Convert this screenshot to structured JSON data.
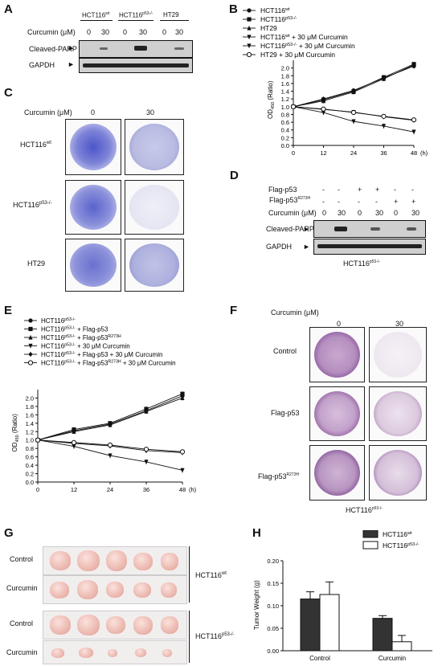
{
  "panels": {
    "A": "A",
    "B": "B",
    "C": "C",
    "D": "D",
    "E": "E",
    "F": "F",
    "G": "G",
    "H": "H"
  },
  "panelA": {
    "groups": [
      {
        "main": "HCT116",
        "sup": "wt"
      },
      {
        "main": "HCT116",
        "sup": "p53-/-"
      },
      {
        "main": "HT29",
        "sup": ""
      }
    ],
    "curcumin_label": "Curcumin (μM)",
    "doses": [
      "0",
      "30",
      "0",
      "30",
      "0",
      "30"
    ],
    "rows": [
      "Cleaved-PARP",
      "GAPDH"
    ]
  },
  "panelB": {
    "legend": [
      {
        "main": "HCT116",
        "sup": "wt",
        "rest": ""
      },
      {
        "main": "HCT116",
        "sup": "p53-/-",
        "rest": ""
      },
      {
        "main": "HT29",
        "sup": "",
        "rest": ""
      },
      {
        "main": "HCT116",
        "sup": "wt",
        "rest": " + 30 μM Curcumin"
      },
      {
        "main": "HCT116",
        "sup": "p53-/-",
        "rest": " + 30 μM Curcumin"
      },
      {
        "main": "HT29",
        "sup": "",
        "rest": " + 30 μM Curcumin"
      }
    ],
    "ylabel": "OD",
    "ylabel_sub": "450",
    "ylabel_rest": " (Ratio)",
    "xunit": "(h)"
  },
  "chart_data": [
    {
      "type": "line",
      "x": [
        0,
        12,
        24,
        36,
        48
      ],
      "xticks": [
        "0",
        "12",
        "24",
        "36",
        "48"
      ],
      "ylim": [
        0,
        2.2
      ],
      "yticks": [
        "0.0",
        "0.2",
        "0.4",
        "0.6",
        "0.8",
        "1.0",
        "1.2",
        "1.4",
        "1.6",
        "1.8",
        "2.0"
      ],
      "series": [
        {
          "name": "HCT116wt",
          "marker": "circle",
          "values": [
            1.0,
            1.2,
            1.42,
            1.74,
            2.05
          ]
        },
        {
          "name": "HCT116p53-/-",
          "marker": "square",
          "values": [
            1.0,
            1.18,
            1.4,
            1.76,
            2.1
          ]
        },
        {
          "name": "HT29",
          "marker": "triangle",
          "values": [
            1.0,
            1.15,
            1.38,
            1.72,
            2.08
          ]
        },
        {
          "name": "HCT116wt + 30 μM Curcumin",
          "marker": "triangle-down",
          "values": [
            1.0,
            0.93,
            0.86,
            0.74,
            0.65
          ]
        },
        {
          "name": "HCT116p53-/- + 30 μM Curcumin",
          "marker": "triangle-down",
          "values": [
            1.0,
            0.85,
            0.62,
            0.5,
            0.35
          ]
        },
        {
          "name": "HT29 + 30 μM Curcumin",
          "marker": "open-circle",
          "values": [
            1.0,
            0.94,
            0.85,
            0.75,
            0.66
          ]
        }
      ]
    },
    {
      "type": "line",
      "x": [
        0,
        12,
        24,
        36,
        48
      ],
      "xticks": [
        "0",
        "12",
        "24",
        "36",
        "48"
      ],
      "ylim": [
        0,
        2.2
      ],
      "yticks": [
        "0.0",
        "0.2",
        "0.4",
        "0.6",
        "0.8",
        "1.0",
        "1.2",
        "1.4",
        "1.6",
        "1.8",
        "2.0"
      ],
      "series": [
        {
          "name": "HCT116p53-/-",
          "marker": "circle",
          "values": [
            1.0,
            1.22,
            1.38,
            1.7,
            2.05
          ]
        },
        {
          "name": "HCT116p53-/- + Flag-p53",
          "marker": "square",
          "values": [
            1.0,
            1.25,
            1.4,
            1.74,
            2.1
          ]
        },
        {
          "name": "HCT116p53-/- + Flag-p53R273H",
          "marker": "triangle",
          "values": [
            1.0,
            1.2,
            1.36,
            1.68,
            2.0
          ]
        },
        {
          "name": "HCT116p53-/- + 30 μM Curcumin",
          "marker": "triangle-down",
          "values": [
            1.0,
            0.85,
            0.63,
            0.48,
            0.28
          ]
        },
        {
          "name": "HCT116p53-/- + Flag-p53 + 30 μM Curcumin",
          "marker": "diamond",
          "values": [
            1.0,
            0.92,
            0.86,
            0.75,
            0.7
          ]
        },
        {
          "name": "HCT116p53-/- + Flag-p53R273H + 30 μM Curcumin",
          "marker": "open-circle",
          "values": [
            1.0,
            0.94,
            0.88,
            0.78,
            0.72
          ]
        }
      ]
    },
    {
      "type": "bar",
      "categories": [
        "Control",
        "Curcumin"
      ],
      "ylim": [
        0,
        0.2
      ],
      "yticks": [
        "0.00",
        "0.05",
        "0.10",
        "0.15",
        "0.20"
      ],
      "series": [
        {
          "name": "HCT116wt",
          "color": "#333333",
          "values": [
            0.115,
            0.072
          ],
          "err": [
            0.016,
            0.006
          ]
        },
        {
          "name": "HCT116p53-/-",
          "color": "#ffffff",
          "values": [
            0.125,
            0.02
          ],
          "err": [
            0.028,
            0.014
          ]
        }
      ]
    }
  ],
  "panelC": {
    "curcumin_label": "Curcumin  (μM)",
    "cols": [
      "0",
      "30"
    ],
    "rows": [
      {
        "main": "HCT116",
        "sup": "wt"
      },
      {
        "main": "HCT116",
        "sup": "p53-/-"
      },
      {
        "main": "HT29",
        "sup": ""
      }
    ]
  },
  "panelD": {
    "rows": [
      {
        "main": "Flag-p53",
        "sup": "",
        "marks": [
          "-",
          "-",
          "+",
          "+",
          "-",
          "-"
        ]
      },
      {
        "main": "Flag-p53",
        "sup": "R273H",
        "marks": [
          "-",
          "-",
          "-",
          "-",
          "+",
          "+"
        ]
      },
      {
        "main": "Curcumin (μM)",
        "sup": "",
        "marks": [
          "0",
          "30",
          "0",
          "30",
          "0",
          "30"
        ]
      }
    ],
    "blots": [
      "Cleaved-PARP",
      "GAPDH"
    ],
    "cell": {
      "main": "HCT116",
      "sup": "p53-/-"
    }
  },
  "panelE": {
    "legend": [
      {
        "a": "HCT116",
        "s": "p53-/-",
        "b": "",
        "s2": "",
        "c": ""
      },
      {
        "a": "HCT116",
        "s": "p53-/-",
        "b": " + Flag-p53",
        "s2": "",
        "c": ""
      },
      {
        "a": "HCT116",
        "s": "p53-/-",
        "b": " + Flag-p53",
        "s2": "R273H",
        "c": ""
      },
      {
        "a": "HCT116",
        "s": "p53-/-",
        "b": " + 30 μM Curcumin",
        "s2": "",
        "c": ""
      },
      {
        "a": "HCT116",
        "s": "p53-/-",
        "b": " + Flag-p53 + 30 μM Curcumin",
        "s2": "",
        "c": ""
      },
      {
        "a": "HCT116",
        "s": "p53-/-",
        "b": " + Flag-p53",
        "s2": "R273H",
        "c": " + 30 μM Curcumin"
      }
    ],
    "ylabel": "OD",
    "ylabel_sub": "450",
    "ylabel_rest": " (Ratio)",
    "xunit": "(h)"
  },
  "panelF": {
    "curcumin_label": "Curcumin (μM)",
    "cols": [
      "0",
      "30"
    ],
    "rows": [
      {
        "main": "Control",
        "sup": ""
      },
      {
        "main": "Flag-p53",
        "sup": ""
      },
      {
        "main": "Flag-p53",
        "sup": "R273H"
      }
    ],
    "cell": {
      "main": "HCT116",
      "sup": "p53-/-"
    }
  },
  "panelG": {
    "rows": [
      "Control",
      "Curcumin",
      "Control",
      "Curcumin"
    ],
    "groups": [
      {
        "main": "HCT116",
        "sup": "wt"
      },
      {
        "main": "HCT116",
        "sup": "p53-/-"
      }
    ]
  },
  "panelH": {
    "ylabel": "Tumor Weight (g)",
    "legend": [
      {
        "main": "HCT116",
        "sup": "wt"
      },
      {
        "main": "HCT116",
        "sup": "p53-/-"
      }
    ]
  },
  "colors": {
    "stain": "#5a5fc8",
    "stain_f": "#7a3f8f",
    "tumor": "#eab5ab"
  }
}
